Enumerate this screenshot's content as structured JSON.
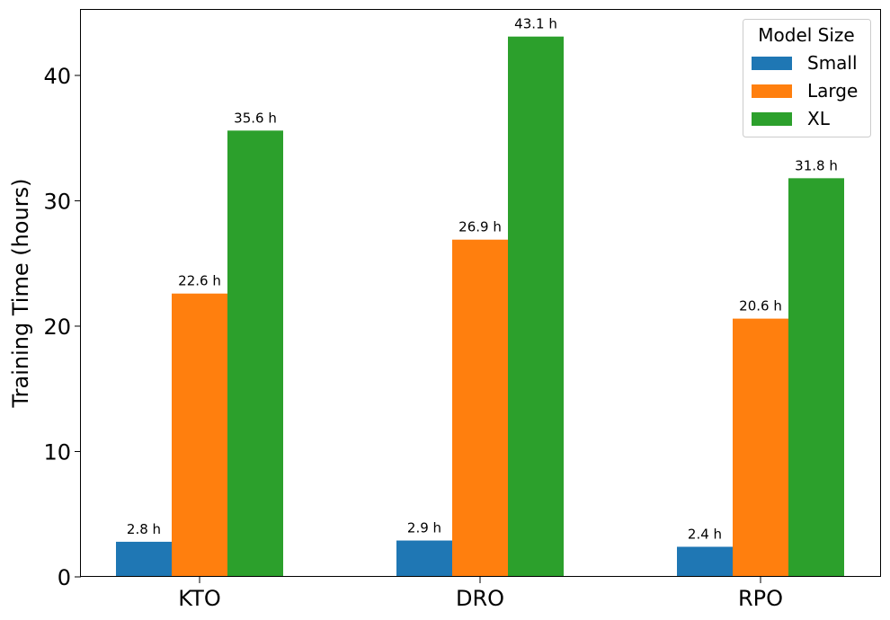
{
  "chart_data": {
    "type": "bar",
    "categories": [
      "KTO",
      "DRO",
      "RPO"
    ],
    "ylabel": "Training Time (hours)",
    "xlabel": "",
    "ylim": [
      0,
      45.3
    ],
    "yticks": [
      0,
      10,
      20,
      30,
      40
    ],
    "legend_title": "Model Size",
    "legend_position": "top-right",
    "series": [
      {
        "name": "Small",
        "color": "#1f77b4",
        "values": [
          2.8,
          2.9,
          2.4
        ],
        "labels": [
          "2.8 h",
          "2.9 h",
          "2.4 h"
        ]
      },
      {
        "name": "Large",
        "color": "#ff7f0e",
        "values": [
          22.6,
          26.9,
          20.6
        ],
        "labels": [
          "22.6 h",
          "26.9 h",
          "20.6 h"
        ]
      },
      {
        "name": "XL",
        "color": "#2ca02c",
        "values": [
          35.6,
          43.1,
          31.8
        ],
        "labels": [
          "35.6 h",
          "43.1 h",
          "31.8 h"
        ]
      }
    ]
  }
}
